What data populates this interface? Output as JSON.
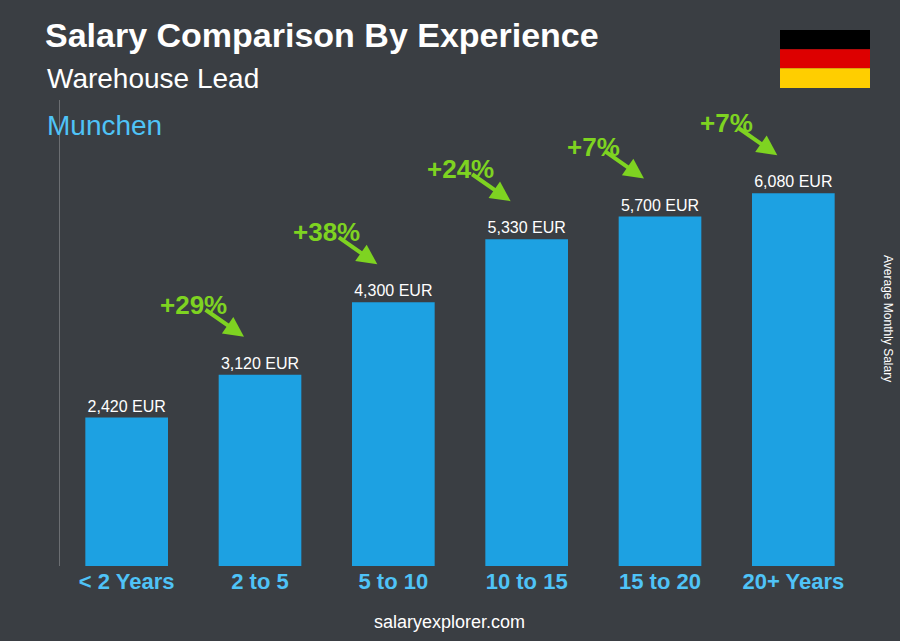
{
  "chart_data": {
    "type": "bar",
    "title": "Salary Comparison By Experience",
    "subtitle": "Warehouse Lead",
    "location": "Munchen",
    "y_label": "Average Monthly Salary",
    "source": "salaryexplorer.com",
    "categories": [
      "< 2 Years",
      "2 to 5",
      "5 to 10",
      "10 to 15",
      "15 to 20",
      "20+ Years"
    ],
    "values": [
      2420,
      3120,
      4300,
      5330,
      5700,
      6080
    ],
    "value_labels": [
      "2,420 EUR",
      "3,120 EUR",
      "4,300 EUR",
      "5,330 EUR",
      "5,700 EUR",
      "6,080 EUR"
    ],
    "annotations": [
      "+29%",
      "+38%",
      "+24%",
      "+7%",
      "+7%"
    ],
    "color": "#1da1e2",
    "ylim": [
      0,
      7600
    ],
    "yticks": [],
    "data_labels": true,
    "tick_labels": "x",
    "grid": false
  }
}
